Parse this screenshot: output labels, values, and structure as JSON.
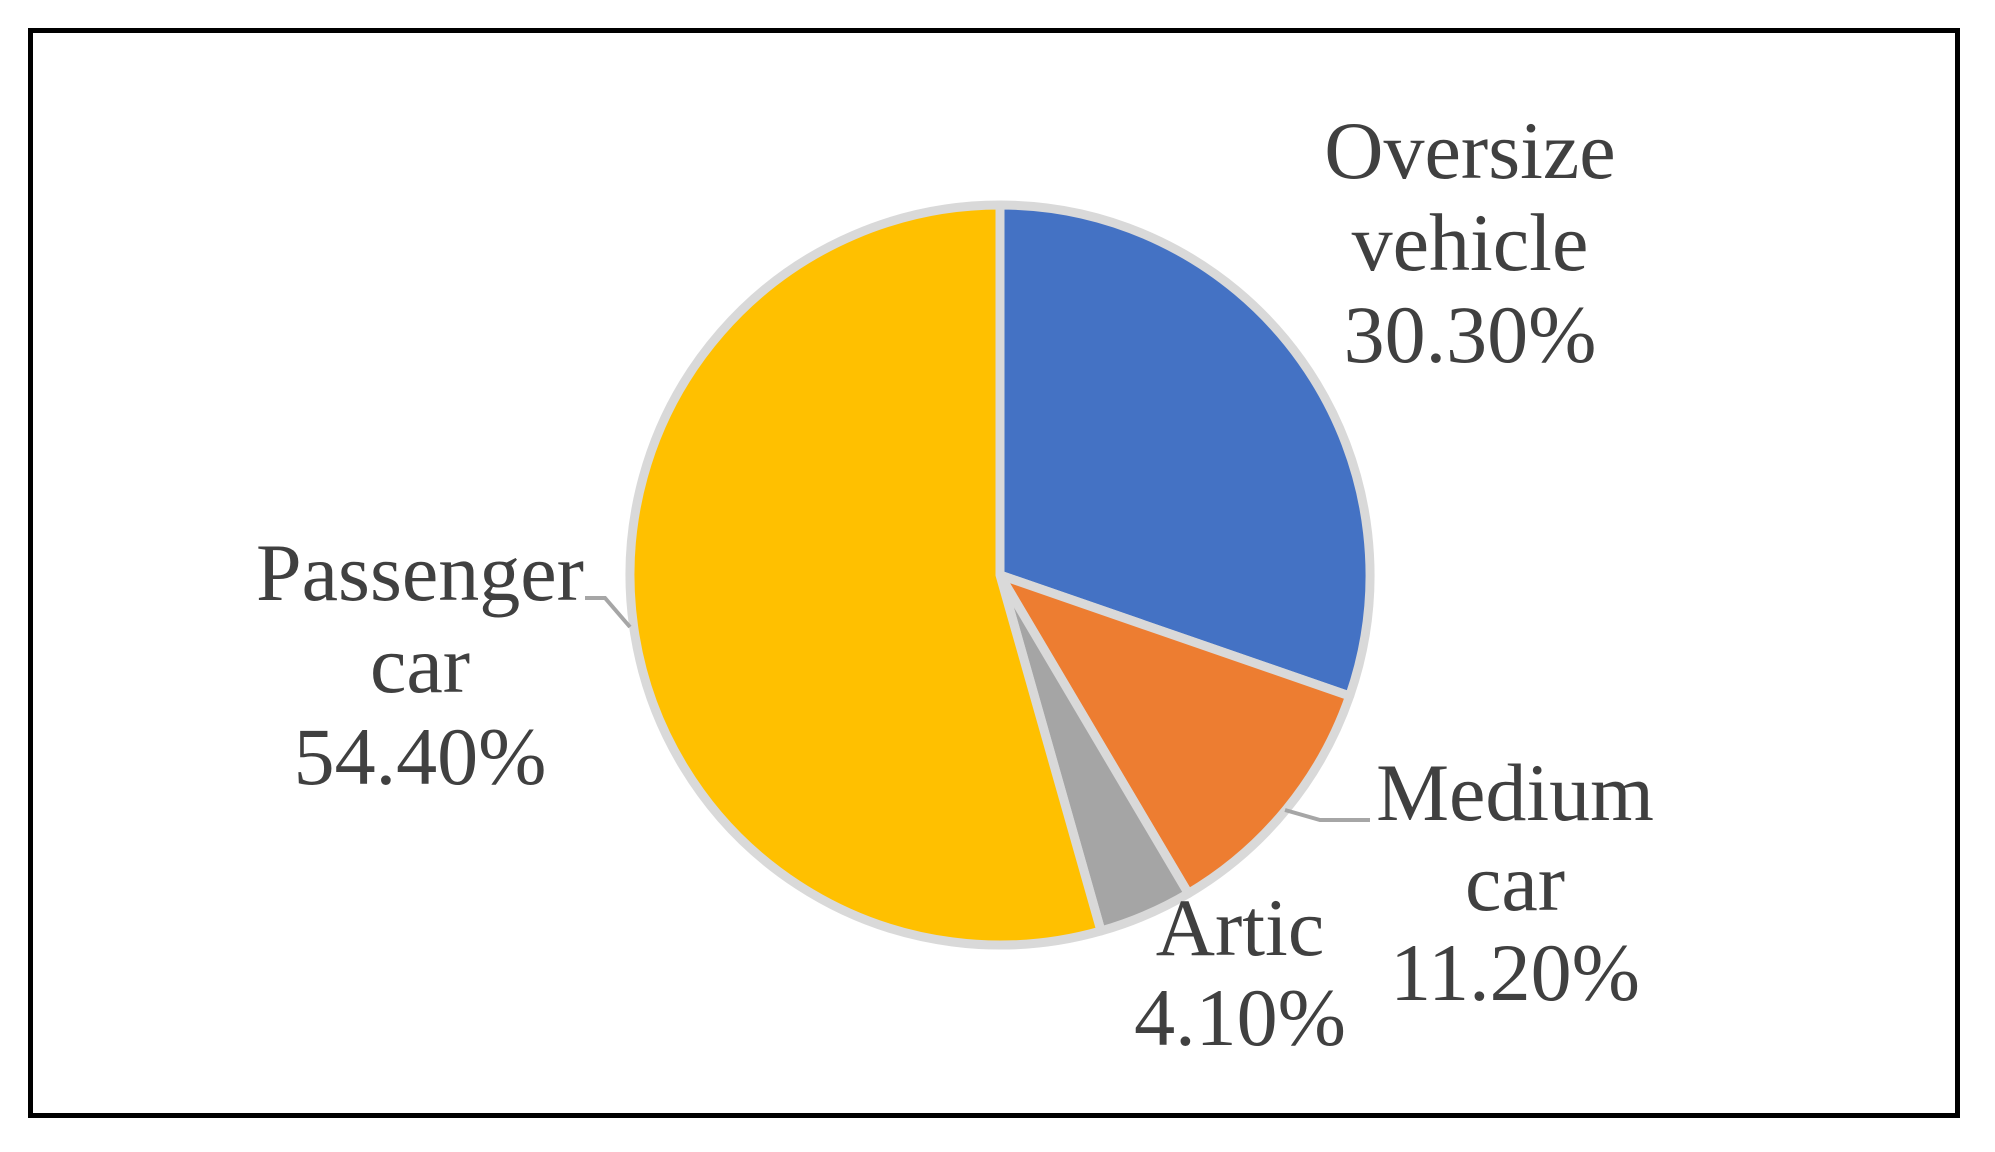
{
  "chart_data": {
    "type": "pie",
    "title": "",
    "slices": [
      {
        "name": "Oversize vehicle",
        "label_lines": [
          "Oversize",
          "vehicle"
        ],
        "value": 30.3,
        "value_label": "30.30%",
        "color": "#4472C4"
      },
      {
        "name": "Medium car",
        "label_lines": [
          "Medium",
          "car"
        ],
        "value": 11.2,
        "value_label": "11.20%",
        "color": "#ED7D31"
      },
      {
        "name": "Artic",
        "label_lines": [
          "Artic"
        ],
        "value": 4.1,
        "value_label": "4.10%",
        "color": "#A5A5A5"
      },
      {
        "name": "Passenger car",
        "label_lines": [
          "Passenger",
          "car"
        ],
        "value": 54.4,
        "value_label": "54.40%",
        "color": "#FFC000"
      }
    ],
    "slice_border_color": "#D9D9D9",
    "label_color": "#404040",
    "start_angle": "12 o'clock",
    "direction": "clockwise",
    "legend": "none",
    "data_labels": "outside with leader lines"
  }
}
